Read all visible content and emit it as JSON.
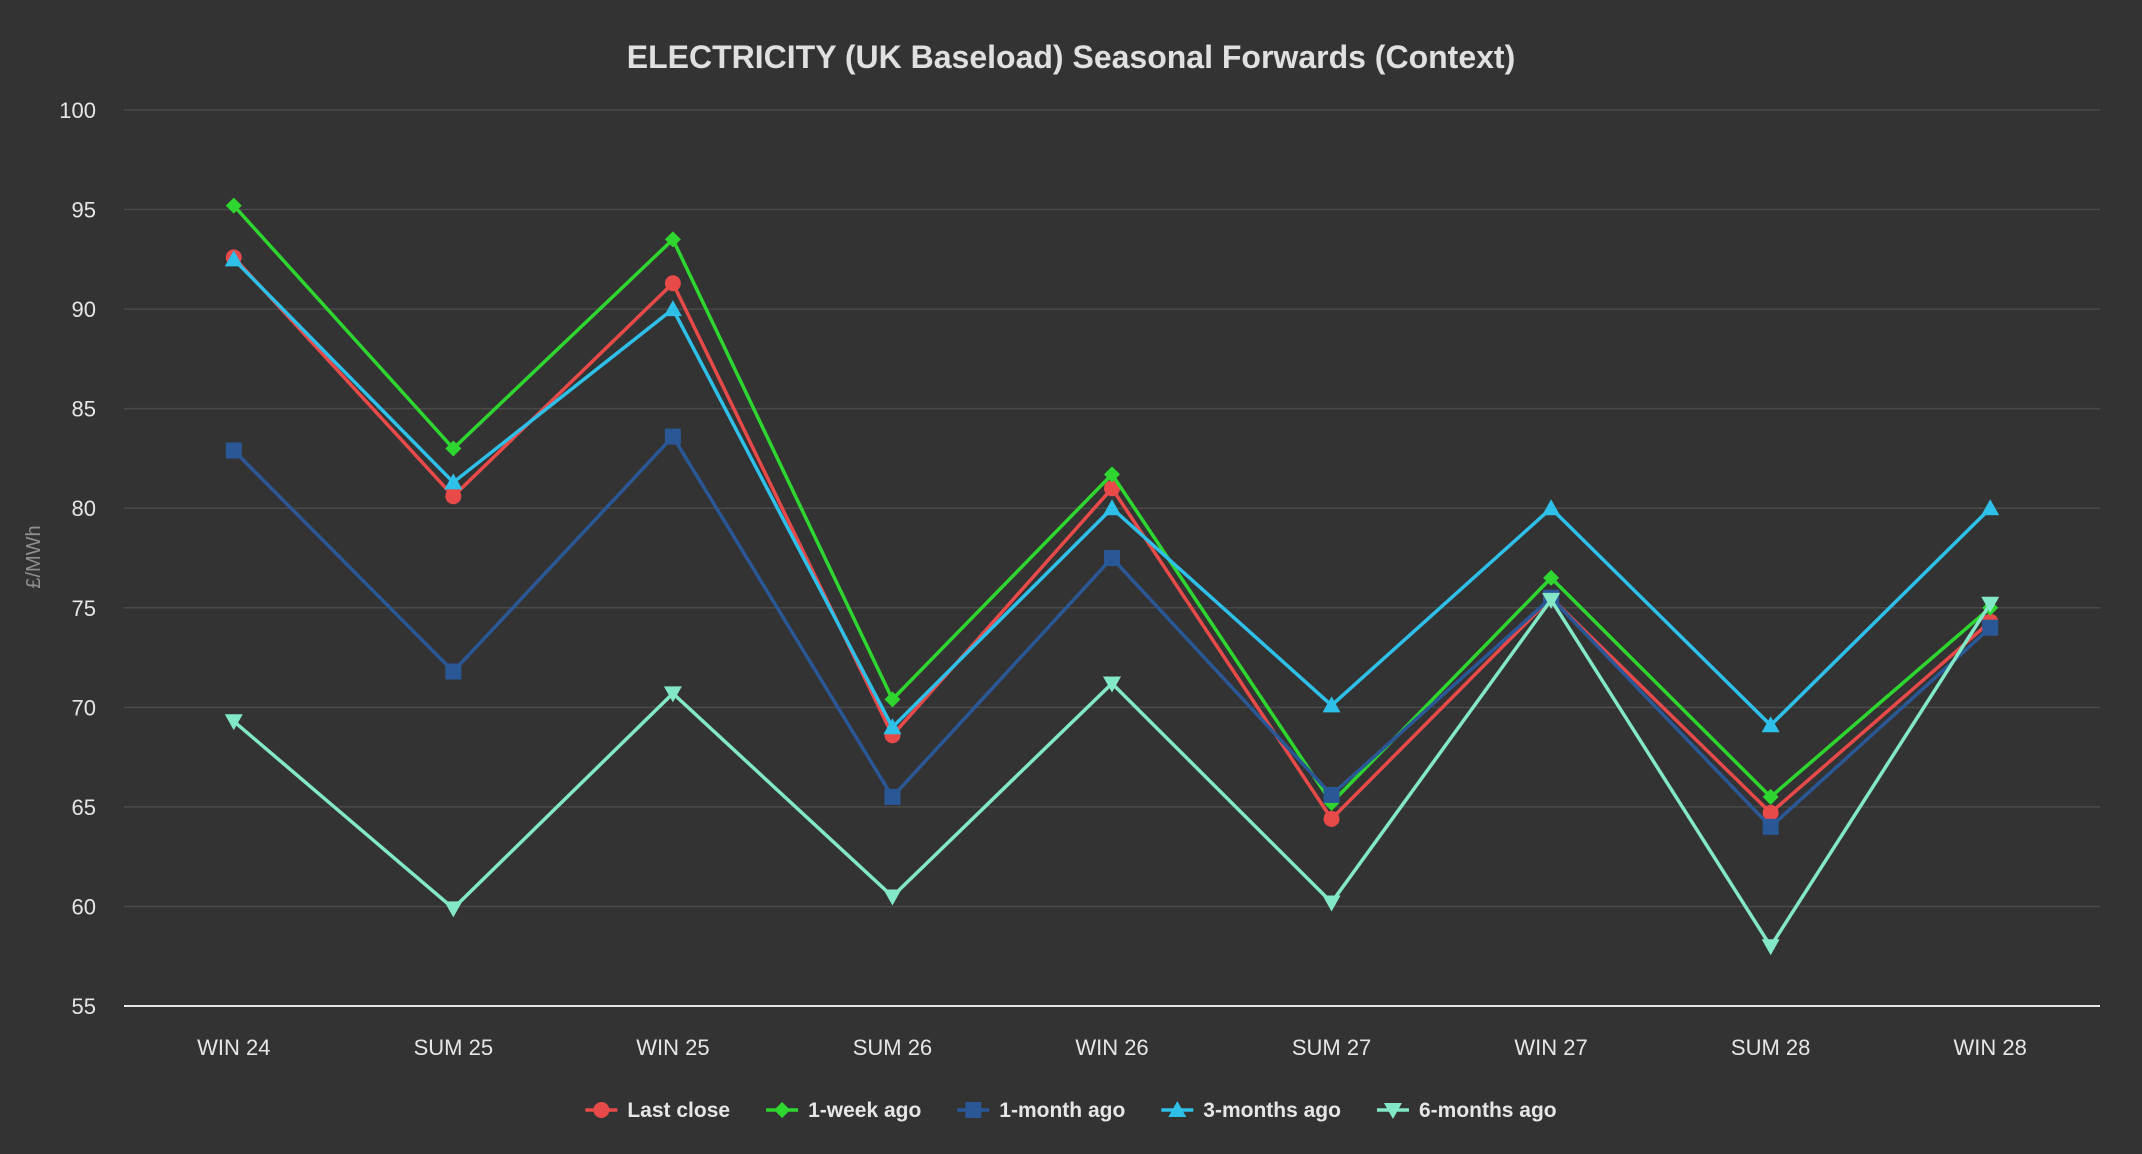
{
  "colors": {
    "background": "#333333",
    "grid": "#4a4a4a",
    "axis": "#e6e6e6",
    "text": "#e6e6e6"
  },
  "chart_data": {
    "type": "line",
    "title": "ELECTRICITY (UK Baseload) Seasonal Forwards (Context)",
    "xlabel": "",
    "ylabel": "£/MWh",
    "ylim": [
      55,
      100
    ],
    "yticks": [
      55,
      60,
      65,
      70,
      75,
      80,
      85,
      90,
      95,
      100
    ],
    "grid": true,
    "legend_position": "bottom-center",
    "categories": [
      "WIN 24",
      "SUM 25",
      "WIN 25",
      "SUM 26",
      "WIN 26",
      "SUM 27",
      "WIN 27",
      "SUM 28",
      "WIN 28"
    ],
    "series": [
      {
        "name": "Last close",
        "color": "#e84a4a",
        "marker": "circle",
        "values": [
          92.6,
          80.6,
          91.3,
          68.6,
          81.0,
          64.4,
          75.5,
          64.7,
          74.3
        ]
      },
      {
        "name": "1-week ago",
        "color": "#2fd62f",
        "marker": "diamond",
        "values": [
          95.2,
          83.0,
          93.5,
          70.4,
          81.7,
          65.2,
          76.5,
          65.5,
          75.0
        ]
      },
      {
        "name": "1-month ago",
        "color": "#2a5796",
        "marker": "square",
        "values": [
          82.9,
          71.8,
          83.6,
          65.5,
          77.5,
          65.6,
          75.5,
          64.0,
          74.0
        ]
      },
      {
        "name": "3-months ago",
        "color": "#2ec0e8",
        "marker": "triangle",
        "values": [
          92.5,
          81.3,
          90.0,
          69.0,
          80.0,
          70.1,
          80.0,
          69.1,
          80.0
        ]
      },
      {
        "name": "6-months ago",
        "color": "#82e8c8",
        "marker": "triangle-down",
        "values": [
          69.3,
          59.9,
          70.7,
          60.5,
          71.2,
          60.2,
          75.4,
          58.0,
          75.2
        ]
      }
    ]
  }
}
